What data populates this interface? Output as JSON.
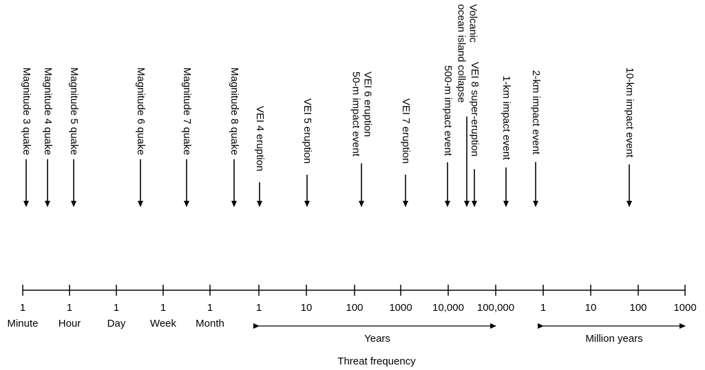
{
  "axis_title": "Threat frequency",
  "ticks": [
    {
      "num": "1",
      "unit": "Minute"
    },
    {
      "num": "1",
      "unit": "Hour"
    },
    {
      "num": "1",
      "unit": "Day"
    },
    {
      "num": "1",
      "unit": "Week"
    },
    {
      "num": "1",
      "unit": "Month"
    },
    {
      "num": "1",
      "unit": ""
    },
    {
      "num": "10",
      "unit": ""
    },
    {
      "num": "100",
      "unit": ""
    },
    {
      "num": "1000",
      "unit": ""
    },
    {
      "num": "10,000",
      "unit": ""
    },
    {
      "num": "100,000",
      "unit": ""
    },
    {
      "num": "1",
      "unit": ""
    },
    {
      "num": "10",
      "unit": ""
    },
    {
      "num": "100",
      "unit": ""
    },
    {
      "num": "1000",
      "unit": ""
    }
  ],
  "ranges": [
    {
      "label": "Years"
    },
    {
      "label": "Million years"
    }
  ],
  "events": [
    {
      "lines": [
        "Magnitude 3 quake"
      ]
    },
    {
      "lines": [
        "Magnitude 4 quake"
      ]
    },
    {
      "lines": [
        "Magnitude 5 quake"
      ]
    },
    {
      "lines": [
        "Magnitude 6 quake"
      ]
    },
    {
      "lines": [
        "Magnitude 7 quake"
      ]
    },
    {
      "lines": [
        "Magnitude 8 quake"
      ]
    },
    {
      "lines": [
        "VEI 4 eruption"
      ]
    },
    {
      "lines": [
        "VEI 5 eruption"
      ]
    },
    {
      "lines": [
        "VEI 6 eruption",
        "50-m impact event"
      ]
    },
    {
      "lines": [
        "VEI 7 eruption"
      ]
    },
    {
      "lines": [
        "500-m impact event"
      ]
    },
    {
      "lines": [
        "Volcanic",
        "ocean island collapse"
      ]
    },
    {
      "lines": [
        "VEI 8 super-eruption"
      ]
    },
    {
      "lines": [
        "1-km impact event"
      ]
    },
    {
      "lines": [
        "2-km impact event"
      ]
    },
    {
      "lines": [
        "10-km impact event"
      ]
    }
  ]
}
